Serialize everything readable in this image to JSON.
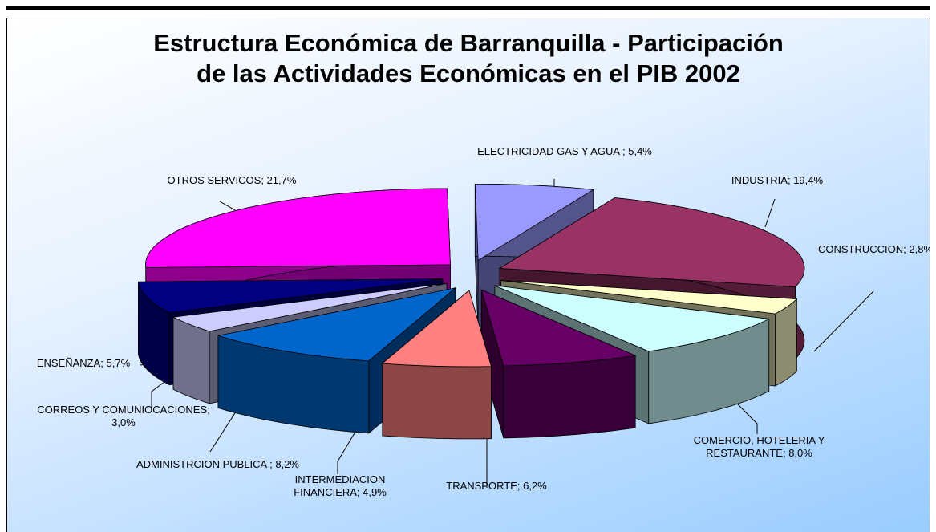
{
  "chart_data": {
    "type": "pie3d",
    "title": "Estructura Económica de Barranquilla - Participación de las Actividades Económicas en el PIB 2002",
    "categories": [
      "ELECTRICIDAD GAS Y AGUA ;",
      "INDUSTRIA;",
      "CONSTRUCCION;",
      "COMERCIO, HOTELERIA Y RESTAURANTE;",
      "TRANSPORTE;",
      "INTERMEDIACION FINANCIERA;",
      "ADMINISTRCION PUBLICA ;",
      "CORREOS Y COMUNIOCACIONES;",
      "ENSEÑANZA;",
      "OTROS SERVICOS;"
    ],
    "values": [
      5.4,
      19.4,
      2.8,
      8.0,
      6.2,
      4.9,
      8.2,
      3.0,
      5.7,
      21.7
    ],
    "value_labels": [
      "5,4%",
      "19,4%",
      "2,8%",
      "8,0%",
      "6,2%",
      "4,9%",
      "8,2%",
      "3,0%",
      "5,7%",
      "21,7%"
    ],
    "colors": [
      "#9999ff",
      "#993366",
      "#ffffcc",
      "#ccffff",
      "#660066",
      "#ff8080",
      "#0066cc",
      "#ccccff",
      "#000080",
      "#ff00ff"
    ]
  }
}
